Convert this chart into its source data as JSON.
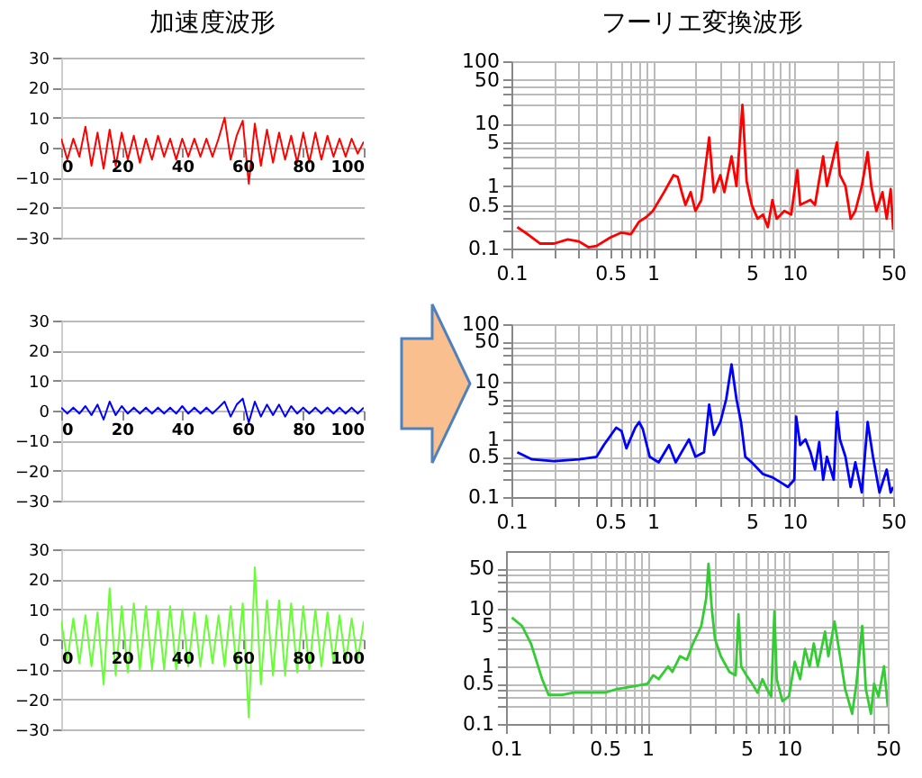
{
  "chart_data": [
    {
      "type": "line",
      "title": "加速度波形",
      "x": [
        0,
        2,
        4,
        6,
        8,
        10,
        12,
        14,
        16,
        18,
        20,
        22,
        24,
        26,
        28,
        30,
        32,
        34,
        36,
        38,
        40,
        42,
        44,
        46,
        48,
        50,
        52,
        54,
        56,
        58,
        60,
        62,
        64,
        66,
        68,
        70,
        72,
        74,
        76,
        78,
        80,
        82,
        84,
        86,
        88,
        90,
        92,
        94,
        96,
        98,
        100
      ],
      "series": [
        {
          "color": "#ff0000",
          "values": [
            3,
            -4,
            3,
            -3,
            7,
            -6,
            5,
            -7,
            6,
            -6,
            5,
            -4,
            4,
            -5,
            3,
            -4,
            4,
            -3,
            3,
            -4,
            3,
            -3,
            3,
            -3,
            3,
            -3,
            3,
            10,
            -4,
            4,
            9,
            -12,
            8,
            -6,
            6,
            -5,
            5,
            -4,
            4,
            -5,
            5,
            -5,
            5,
            -4,
            4,
            -3,
            3,
            -3,
            3,
            -2,
            2
          ]
        }
      ],
      "xlim": [
        0,
        100
      ],
      "ylim": [
        -30,
        30
      ],
      "xticks": [
        0,
        20,
        40,
        60,
        80,
        100
      ],
      "yticks": [
        -30,
        -20,
        -10,
        0,
        10,
        20,
        30
      ],
      "grid": "y"
    },
    {
      "type": "line",
      "title": "フーリエ変換波形",
      "x": [
        0.11,
        0.13,
        0.16,
        0.2,
        0.25,
        0.3,
        0.35,
        0.4,
        0.5,
        0.6,
        0.7,
        0.8,
        0.9,
        1.0,
        1.2,
        1.4,
        1.5,
        1.6,
        1.7,
        1.85,
        2.0,
        2.2,
        2.5,
        2.7,
        3.0,
        3.2,
        3.6,
        3.9,
        4.3,
        4.6,
        5,
        5.5,
        6,
        6.5,
        7,
        7.5,
        8.5,
        9.5,
        10.5,
        11,
        13,
        14,
        16,
        17,
        19,
        20,
        21,
        23,
        25,
        27,
        30,
        33,
        35,
        38,
        42,
        45,
        48,
        50
      ],
      "series": [
        {
          "color": "#ff0000",
          "values": [
            0.22,
            0.17,
            0.12,
            0.12,
            0.14,
            0.13,
            0.105,
            0.11,
            0.15,
            0.18,
            0.17,
            0.27,
            0.32,
            0.4,
            0.8,
            1.5,
            1.4,
            0.8,
            0.5,
            0.8,
            0.4,
            0.6,
            6,
            0.8,
            1.5,
            0.8,
            3,
            1,
            20,
            1.2,
            0.5,
            0.3,
            0.35,
            0.22,
            0.6,
            0.3,
            0.4,
            0.35,
            1.8,
            0.5,
            0.6,
            0.5,
            3,
            1,
            3,
            5,
            1.5,
            1,
            0.3,
            0.4,
            1,
            3.5,
            1,
            0.4,
            0.8,
            0.3,
            0.9,
            0.2
          ]
        }
      ],
      "xlim": [
        0.1,
        50
      ],
      "ylim": [
        0.1,
        100
      ],
      "log": "xy",
      "grid": true,
      "xticks": [
        0.1,
        {
          "value": 0.2,
          "label": null
        },
        {
          "value": 0.3,
          "label": null
        },
        {
          "value": 0.4,
          "label": null
        },
        0.5,
        {
          "value": 0.6,
          "label": null
        },
        {
          "value": 0.7,
          "label": null
        },
        {
          "value": 0.8,
          "label": null
        },
        {
          "value": 0.9,
          "label": null
        },
        1,
        {
          "value": 2,
          "label": null
        },
        {
          "value": 3,
          "label": null
        },
        {
          "value": 4,
          "label": null
        },
        5,
        {
          "value": 6,
          "label": null
        },
        {
          "value": 7,
          "label": null
        },
        {
          "value": 8,
          "label": null
        },
        {
          "value": 9,
          "label": null
        },
        10,
        {
          "value": 20,
          "label": null
        },
        {
          "value": 30,
          "label": null
        },
        {
          "value": 40,
          "label": null
        },
        50
      ],
      "yticks": [
        0.1,
        {
          "value": 0.2,
          "label": null
        },
        {
          "value": 0.3,
          "label": null
        },
        {
          "value": 0.4,
          "label": null
        },
        0.5,
        1,
        {
          "value": 2,
          "label": null
        },
        {
          "value": 3,
          "label": null
        },
        {
          "value": 4,
          "label": null
        },
        5,
        10,
        {
          "value": 20,
          "label": null
        },
        {
          "value": 30,
          "label": null
        },
        {
          "value": 40,
          "label": null
        },
        50,
        100
      ]
    },
    {
      "type": "line",
      "x": [
        0,
        2,
        4,
        6,
        8,
        10,
        12,
        14,
        16,
        18,
        20,
        22,
        24,
        26,
        28,
        30,
        32,
        34,
        36,
        38,
        40,
        42,
        44,
        46,
        48,
        50,
        52,
        54,
        56,
        58,
        60,
        62,
        64,
        66,
        68,
        70,
        72,
        74,
        76,
        78,
        80,
        82,
        84,
        86,
        88,
        90,
        92,
        94,
        96,
        98,
        100
      ],
      "series": [
        {
          "color": "#0000ff",
          "values": [
            1,
            -1,
            1,
            -1,
            1.5,
            -1.5,
            2,
            -3,
            3,
            -1.5,
            1.5,
            -1,
            1,
            -1,
            1,
            -1,
            1,
            -1,
            1,
            -1,
            1.5,
            -1,
            1,
            -1,
            1,
            -1,
            1,
            3,
            -2,
            2,
            4,
            -4,
            3,
            -2,
            2,
            -1.5,
            2,
            -2,
            1.5,
            -1,
            1,
            -1,
            1,
            -1,
            1,
            -1,
            1,
            -1,
            1,
            -1,
            1
          ]
        }
      ],
      "xlim": [
        0,
        100
      ],
      "ylim": [
        -30,
        30
      ],
      "xticks": [
        0,
        20,
        40,
        60,
        80,
        100
      ],
      "yticks": [
        -30,
        -20,
        -10,
        0,
        10,
        20,
        30
      ],
      "grid": "y"
    },
    {
      "type": "line",
      "x": [
        0.11,
        0.14,
        0.2,
        0.3,
        0.4,
        0.45,
        0.55,
        0.6,
        0.65,
        0.75,
        0.8,
        0.85,
        0.95,
        1.1,
        1.3,
        1.45,
        1.8,
        2.0,
        2.3,
        2.5,
        2.7,
        3.0,
        3.3,
        3.6,
        3.9,
        4.2,
        4.5,
        5,
        6,
        7,
        8,
        9,
        10,
        10.3,
        11,
        12,
        13,
        14,
        15,
        16,
        17,
        19,
        20,
        21,
        23,
        25,
        27,
        30,
        33,
        36,
        40,
        45,
        48,
        50
      ],
      "series": [
        {
          "color": "#0000ff",
          "values": [
            0.6,
            0.45,
            0.42,
            0.45,
            0.5,
            0.8,
            1.6,
            1.4,
            0.7,
            1.6,
            2,
            1.5,
            0.5,
            0.4,
            0.8,
            0.4,
            1,
            0.5,
            0.6,
            4,
            1.2,
            2,
            5,
            20,
            5,
            2,
            0.5,
            0.4,
            0.25,
            0.22,
            0.18,
            0.15,
            0.2,
            2.5,
            0.8,
            1,
            0.6,
            0.3,
            0.9,
            0.2,
            0.5,
            0.2,
            3,
            1,
            0.5,
            0.15,
            0.4,
            0.12,
            2,
            0.5,
            0.12,
            0.3,
            0.12,
            0.15
          ]
        }
      ],
      "xlim": [
        0.1,
        50
      ],
      "ylim": [
        0.1,
        100
      ],
      "log": "xy",
      "grid": true,
      "xticks": [
        0.1,
        {
          "value": 0.2,
          "label": null
        },
        {
          "value": 0.3,
          "label": null
        },
        {
          "value": 0.4,
          "label": null
        },
        0.5,
        {
          "value": 0.6,
          "label": null
        },
        {
          "value": 0.7,
          "label": null
        },
        {
          "value": 0.8,
          "label": null
        },
        {
          "value": 0.9,
          "label": null
        },
        1,
        {
          "value": 2,
          "label": null
        },
        {
          "value": 3,
          "label": null
        },
        {
          "value": 4,
          "label": null
        },
        5,
        {
          "value": 6,
          "label": null
        },
        {
          "value": 7,
          "label": null
        },
        {
          "value": 8,
          "label": null
        },
        {
          "value": 9,
          "label": null
        },
        10,
        {
          "value": 20,
          "label": null
        },
        {
          "value": 30,
          "label": null
        },
        {
          "value": 40,
          "label": null
        },
        50
      ],
      "yticks": [
        0.1,
        {
          "value": 0.2,
          "label": null
        },
        {
          "value": 0.3,
          "label": null
        },
        {
          "value": 0.4,
          "label": null
        },
        0.5,
        1,
        {
          "value": 2,
          "label": null
        },
        {
          "value": 3,
          "label": null
        },
        {
          "value": 4,
          "label": null
        },
        5,
        10,
        {
          "value": 20,
          "label": null
        },
        {
          "value": 30,
          "label": null
        },
        {
          "value": 40,
          "label": null
        },
        50,
        100
      ]
    },
    {
      "type": "line",
      "x": [
        0,
        2,
        4,
        6,
        8,
        10,
        12,
        14,
        16,
        18,
        20,
        22,
        24,
        26,
        28,
        30,
        32,
        34,
        36,
        38,
        40,
        42,
        44,
        46,
        48,
        50,
        52,
        54,
        56,
        58,
        60,
        62,
        64,
        66,
        68,
        70,
        72,
        74,
        76,
        78,
        80,
        82,
        84,
        86,
        88,
        90,
        92,
        94,
        96,
        98,
        100
      ],
      "series": [
        {
          "color": "#66ff33",
          "values": [
            6,
            -7,
            7,
            -8,
            8,
            -9,
            9,
            -15,
            17,
            -12,
            11,
            -11,
            12,
            -10,
            11,
            -10,
            10,
            -10,
            11,
            -10,
            10,
            -9,
            9,
            -9,
            8,
            -8,
            8,
            -9,
            11,
            -10,
            12,
            -26,
            24,
            -15,
            13,
            -12,
            13,
            -12,
            12,
            -11,
            11,
            -10,
            10,
            -9,
            9,
            -8,
            8,
            -8,
            7,
            -7,
            6
          ]
        }
      ],
      "xlim": [
        0,
        100
      ],
      "ylim": [
        -30,
        30
      ],
      "xticks": [
        0,
        20,
        40,
        60,
        80,
        100
      ],
      "yticks": [
        -30,
        -20,
        -10,
        0,
        10,
        20,
        30
      ],
      "grid": "y"
    },
    {
      "type": "line",
      "x": [
        0.11,
        0.13,
        0.15,
        0.18,
        0.2,
        0.25,
        0.3,
        0.4,
        0.5,
        0.6,
        0.8,
        1.0,
        1.1,
        1.2,
        1.4,
        1.5,
        1.7,
        1.9,
        2.1,
        2.4,
        2.6,
        2.7,
        2.85,
        3.0,
        3.3,
        3.8,
        4.2,
        4.4,
        4.6,
        5,
        5.5,
        6,
        6.5,
        7,
        7.5,
        7.9,
        8.2,
        9,
        10,
        11,
        12,
        13,
        14,
        15,
        16,
        18,
        19,
        20,
        21,
        23,
        25,
        28,
        30,
        33,
        35,
        38,
        40,
        43,
        47,
        50
      ],
      "series": [
        {
          "color": "#33cc33",
          "values": [
            7,
            5,
            2.5,
            0.6,
            0.32,
            0.32,
            0.35,
            0.35,
            0.35,
            0.4,
            0.45,
            0.5,
            0.7,
            0.6,
            1,
            0.8,
            1.5,
            1.3,
            2.5,
            5,
            15,
            60,
            10,
            3,
            1.5,
            0.8,
            0.7,
            8,
            1,
            0.7,
            0.5,
            0.35,
            0.6,
            0.4,
            0.3,
            9,
            0.6,
            0.25,
            0.3,
            1.2,
            0.6,
            2,
            1,
            2.5,
            1,
            4,
            1.5,
            3,
            6,
            1.5,
            0.4,
            0.15,
            0.5,
            5,
            0.4,
            0.15,
            0.5,
            0.3,
            1,
            0.2
          ]
        }
      ],
      "xlim": [
        0.1,
        50
      ],
      "ylim": [
        0.1,
        100
      ],
      "log": "xy",
      "grid": true,
      "xticks": [
        0.1,
        {
          "value": 0.2,
          "label": null
        },
        {
          "value": 0.3,
          "label": null
        },
        {
          "value": 0.4,
          "label": null
        },
        0.5,
        {
          "value": 0.6,
          "label": null
        },
        {
          "value": 0.7,
          "label": null
        },
        {
          "value": 0.8,
          "label": null
        },
        {
          "value": 0.9,
          "label": null
        },
        1,
        {
          "value": 2,
          "label": null
        },
        {
          "value": 3,
          "label": null
        },
        {
          "value": 4,
          "label": null
        },
        5,
        {
          "value": 6,
          "label": null
        },
        {
          "value": 7,
          "label": null
        },
        {
          "value": 8,
          "label": null
        },
        {
          "value": 9,
          "label": null
        },
        10,
        {
          "value": 20,
          "label": null
        },
        {
          "value": 30,
          "label": null
        },
        {
          "value": 40,
          "label": null
        },
        50
      ],
      "yticks": [
        0.1,
        {
          "value": 0.2,
          "label": null
        },
        {
          "value": 0.3,
          "label": null
        },
        {
          "value": 0.4,
          "label": null
        },
        0.5,
        1,
        {
          "value": 2,
          "label": null
        },
        {
          "value": 3,
          "label": null
        },
        {
          "value": 4,
          "label": null
        },
        5,
        10,
        {
          "value": 20,
          "label": null
        },
        {
          "value": 30,
          "label": null
        },
        {
          "value": 40,
          "label": null
        },
        50
      ]
    }
  ]
}
